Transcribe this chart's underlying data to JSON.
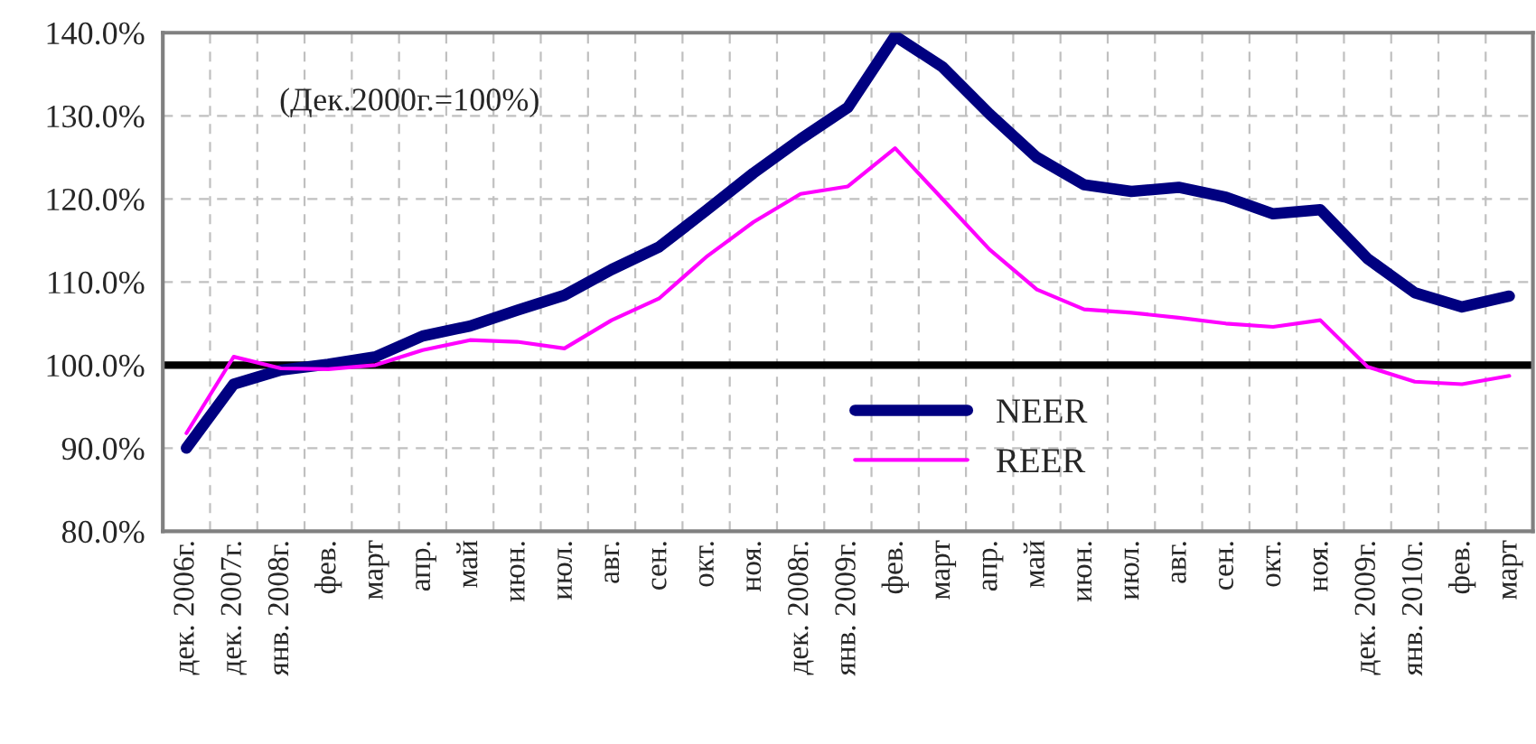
{
  "chart_data": {
    "type": "line",
    "categories": [
      "дек. 2006г.",
      "дек. 2007г.",
      "янв. 2008г.",
      "фев.",
      "март",
      "апр.",
      "май",
      "июн.",
      "июл.",
      "авг.",
      "сен.",
      "окт.",
      "ноя.",
      "дек. 2008г.",
      "янв. 2009г.",
      "фев.",
      "март",
      "апр.",
      "май",
      "июн.",
      "июл.",
      "авг.",
      "сен.",
      "окт.",
      "ноя.",
      "дек. 2009г.",
      "янв. 2010г.",
      "фев.",
      "март"
    ],
    "series": [
      {
        "name": "NEER",
        "color": "#000080",
        "values": [
          90.0,
          97.7,
          99.4,
          100.1,
          101.0,
          103.5,
          104.7,
          106.6,
          108.4,
          111.5,
          114.2,
          118.6,
          123.1,
          127.2,
          131.0,
          139.6,
          135.9,
          130.2,
          125.0,
          121.7,
          120.9,
          121.4,
          120.2,
          118.2,
          118.7,
          112.8,
          108.7,
          107.0,
          108.3
        ]
      },
      {
        "name": "REER",
        "color": "#ff00ff",
        "values": [
          91.8,
          101.0,
          99.6,
          99.5,
          100.0,
          101.8,
          103.0,
          102.8,
          102.0,
          105.4,
          108.0,
          113.0,
          117.2,
          120.6,
          121.5,
          126.1,
          120.0,
          113.9,
          109.1,
          106.7,
          106.3,
          105.7,
          105.0,
          104.6,
          105.4,
          99.8,
          98.0,
          97.7,
          98.7
        ]
      }
    ],
    "ylim": [
      80,
      140
    ],
    "yticks": [
      {
        "value": 80,
        "label": "80.0%"
      },
      {
        "value": 90,
        "label": "90.0%"
      },
      {
        "value": 100,
        "label": "100.0%"
      },
      {
        "value": 110,
        "label": "110.0%"
      },
      {
        "value": 120,
        "label": "120.0%"
      },
      {
        "value": 130,
        "label": "130.0%"
      },
      {
        "value": 140,
        "label": "140.0%"
      }
    ],
    "ref_lines": [
      {
        "axis": "y",
        "value": 100,
        "color": "#000000"
      }
    ],
    "annotations": [
      "(Дек.2000г.=100%)"
    ],
    "grid": true,
    "legend": "bottom",
    "line_style": "solid"
  }
}
